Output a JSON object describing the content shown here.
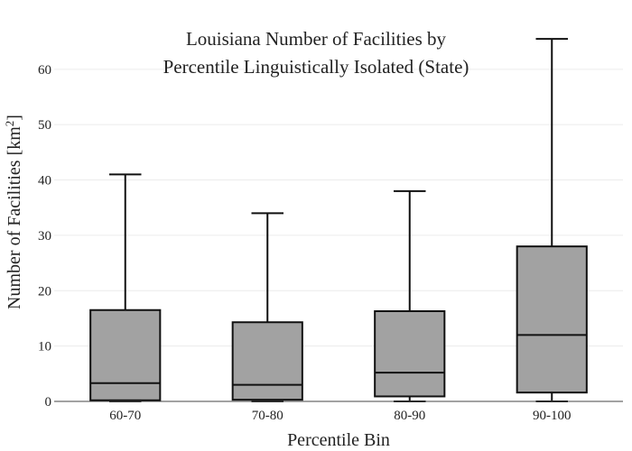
{
  "chart_data": {
    "type": "box",
    "title_lines": [
      "Louisiana Number of Facilities by",
      "Percentile Linguistically Isolated (State)"
    ],
    "xlabel": "Percentile Bin",
    "ylabel_main": "Number of Facilities  [km",
    "ylabel_sup": "2",
    "ylabel_end": "]",
    "ylim": [
      0,
      66
    ],
    "yticks": [
      0,
      10,
      20,
      30,
      40,
      50,
      60
    ],
    "grid": true,
    "categories": [
      "60-70",
      "70-80",
      "80-90",
      "90-100"
    ],
    "boxes": [
      {
        "min": 0,
        "q1": 0.2,
        "median": 3.3,
        "q3": 16.5,
        "max": 41
      },
      {
        "min": 0,
        "q1": 0.3,
        "median": 3.0,
        "q3": 14.3,
        "max": 34
      },
      {
        "min": 0,
        "q1": 0.9,
        "median": 5.2,
        "q3": 16.3,
        "max": 38
      },
      {
        "min": 0,
        "q1": 1.6,
        "median": 12.0,
        "q3": 28.0,
        "max": 65.5
      }
    ]
  }
}
